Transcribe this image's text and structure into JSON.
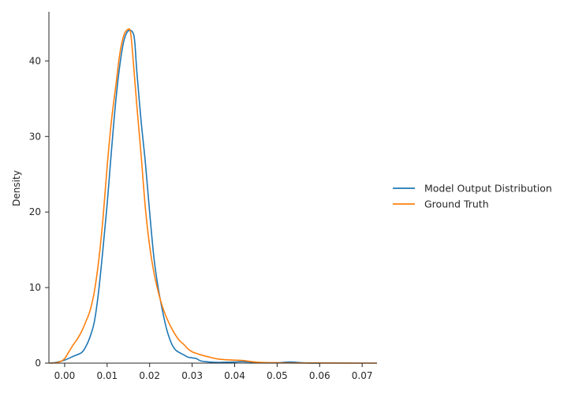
{
  "chart_data": {
    "type": "line",
    "ylabel": "Density",
    "xlabel": "",
    "xlim": [
      -0.0037,
      0.0735
    ],
    "ylim": [
      0,
      46.5
    ],
    "x_ticks": [
      0.0,
      0.01,
      0.02,
      0.03,
      0.04,
      0.05,
      0.06,
      0.07
    ],
    "x_tick_labels": [
      "0.00",
      "0.01",
      "0.02",
      "0.03",
      "0.04",
      "0.05",
      "0.06",
      "0.07"
    ],
    "y_ticks": [
      0,
      10,
      20,
      30,
      40
    ],
    "y_tick_labels": [
      "0",
      "10",
      "20",
      "30",
      "40"
    ],
    "grid": false,
    "legend_position": "right",
    "series": [
      {
        "name": "Model Output Distribution",
        "color": "#1f77b4",
        "x": [
          -0.0035,
          -0.002,
          0.0,
          0.002,
          0.004,
          0.005,
          0.006,
          0.007,
          0.008,
          0.009,
          0.01,
          0.011,
          0.012,
          0.013,
          0.014,
          0.015,
          0.016,
          0.0165,
          0.017,
          0.018,
          0.019,
          0.02,
          0.021,
          0.022,
          0.023,
          0.024,
          0.025,
          0.026,
          0.027,
          0.028,
          0.029,
          0.03,
          0.031,
          0.032,
          0.034,
          0.036,
          0.04,
          0.042,
          0.046,
          0.05,
          0.053,
          0.056,
          0.06
        ],
        "y": [
          0.0,
          0.1,
          0.4,
          0.9,
          1.4,
          2.2,
          3.5,
          5.5,
          9.5,
          15.0,
          21.0,
          28.0,
          34.5,
          39.5,
          42.8,
          44.0,
          43.8,
          42.5,
          38.5,
          32.0,
          26.5,
          20.0,
          14.0,
          10.0,
          7.0,
          4.5,
          2.8,
          1.8,
          1.4,
          1.1,
          0.8,
          0.7,
          0.6,
          0.3,
          0.15,
          0.1,
          0.15,
          0.2,
          0.05,
          0.05,
          0.15,
          0.05,
          0.0
        ]
      },
      {
        "name": "Ground Truth",
        "color": "#ff7f0e",
        "x": [
          -0.0035,
          -0.002,
          -0.001,
          0.0,
          0.001,
          0.002,
          0.003,
          0.004,
          0.005,
          0.006,
          0.007,
          0.008,
          0.009,
          0.01,
          0.011,
          0.012,
          0.013,
          0.014,
          0.015,
          0.0155,
          0.016,
          0.017,
          0.018,
          0.019,
          0.02,
          0.021,
          0.022,
          0.023,
          0.024,
          0.025,
          0.026,
          0.027,
          0.028,
          0.029,
          0.03,
          0.031,
          0.032,
          0.034,
          0.036,
          0.038,
          0.04,
          0.042,
          0.044,
          0.046,
          0.05,
          0.055,
          0.06,
          0.065,
          0.07,
          0.0735
        ],
        "y": [
          0.0,
          0.05,
          0.2,
          0.6,
          1.5,
          2.4,
          3.2,
          4.2,
          5.5,
          7.0,
          9.5,
          13.5,
          19.0,
          26.0,
          32.0,
          36.5,
          41.0,
          43.5,
          44.2,
          43.8,
          41.0,
          34.0,
          27.5,
          20.5,
          15.5,
          12.0,
          9.5,
          7.5,
          6.0,
          4.8,
          3.8,
          3.0,
          2.5,
          1.9,
          1.5,
          1.3,
          1.1,
          0.8,
          0.55,
          0.45,
          0.4,
          0.35,
          0.2,
          0.1,
          0.05,
          0.02,
          0.02,
          0.01,
          0.0,
          0.0
        ]
      }
    ]
  }
}
